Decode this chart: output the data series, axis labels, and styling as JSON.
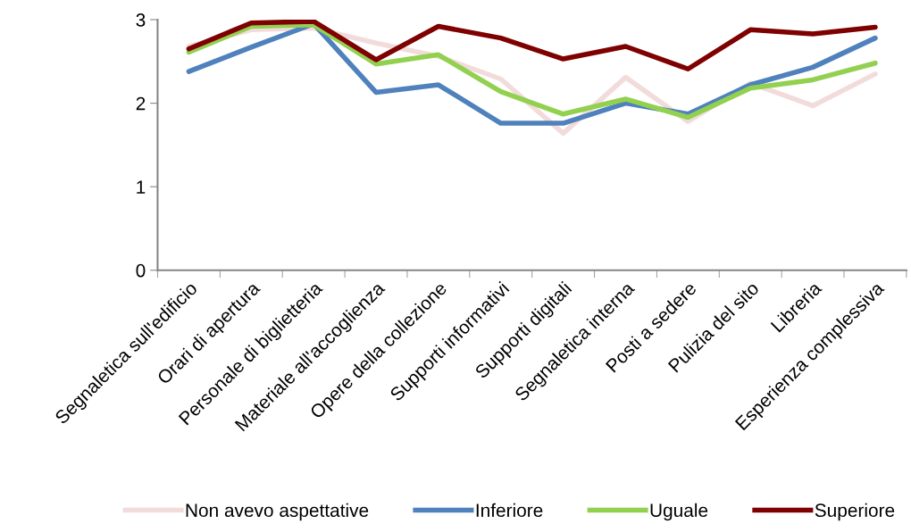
{
  "chart_data": {
    "type": "line",
    "categories": [
      "Segnaletica sull'edificio",
      "Orari di apertura",
      "Personale di biglietteria",
      "Materiale all'accoglienza",
      "Opere della collezione",
      "Supporti informativi",
      "Supporti digitali",
      "Segnaletica interna",
      "Posti a sedere",
      "Pulizia del sito",
      "Libreria",
      "Esperienza complessiva"
    ],
    "series": [
      {
        "name": "Non avevo aspettative",
        "color": "#f2dcdb",
        "values": [
          2.68,
          2.88,
          2.9,
          2.72,
          2.56,
          2.29,
          1.64,
          2.31,
          1.78,
          2.24,
          1.97,
          2.35
        ]
      },
      {
        "name": "Inferiore",
        "color": "#4f81bd",
        "values": [
          2.38,
          2.67,
          2.95,
          2.13,
          2.22,
          1.76,
          1.76,
          2.0,
          1.87,
          2.22,
          2.43,
          2.78
        ]
      },
      {
        "name": "Uguale",
        "color": "#92d050",
        "values": [
          2.61,
          2.92,
          2.94,
          2.47,
          2.58,
          2.14,
          1.87,
          2.05,
          1.83,
          2.18,
          2.28,
          2.48
        ]
      },
      {
        "name": "Superiore",
        "color": "#7f0000",
        "values": [
          2.65,
          2.96,
          2.98,
          2.52,
          2.92,
          2.78,
          2.53,
          2.68,
          2.41,
          2.88,
          2.83,
          2.91
        ]
      }
    ],
    "ylim": [
      0,
      3
    ],
    "yticks": [
      0,
      1,
      2,
      3
    ],
    "grid": false,
    "legend": "bottom",
    "marker": "none",
    "line_style": "solid"
  }
}
